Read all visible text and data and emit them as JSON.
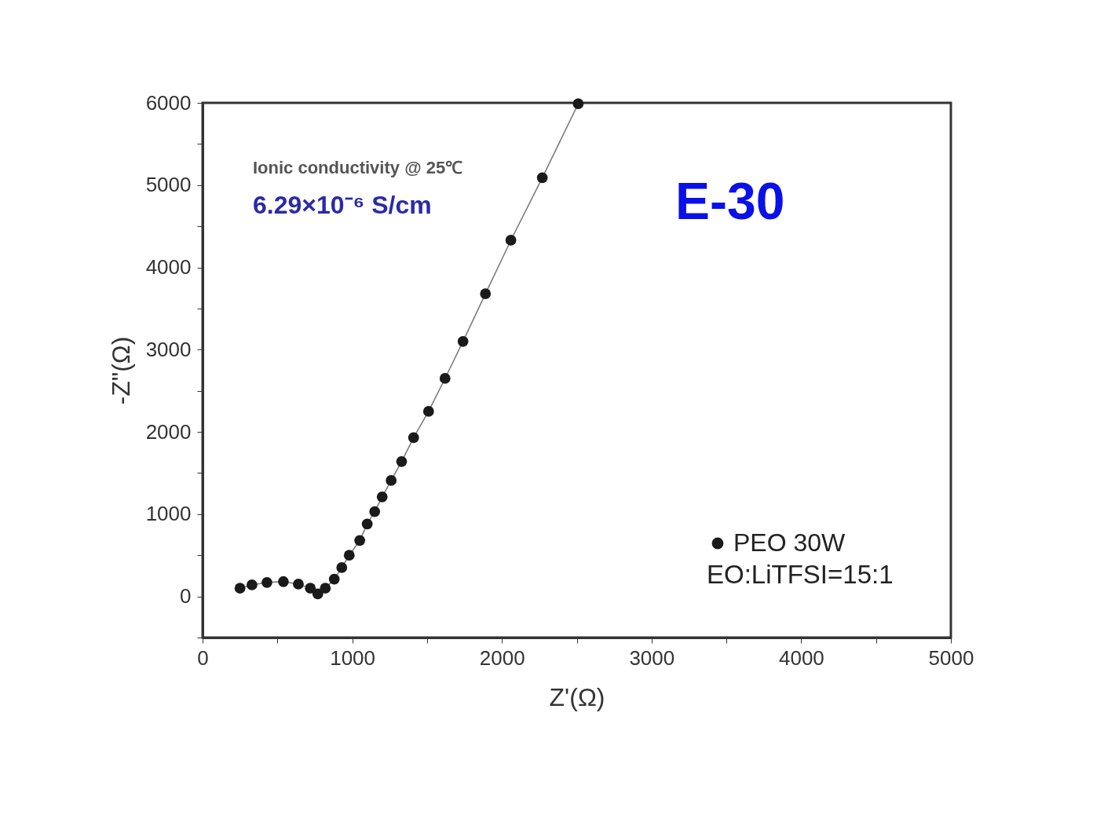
{
  "chart_data": {
    "type": "line",
    "xlabel": "Z'(Ω)",
    "ylabel": "-Z\"(Ω)",
    "annotations": [
      "Ionic conductivity @ 25℃",
      "6.29×10⁻⁶ S/cm",
      "E-30",
      "EO:LiTFSI=15:1"
    ],
    "x": [
      250,
      330,
      430,
      540,
      640,
      720,
      770,
      820,
      880,
      930,
      980,
      1050,
      1100,
      1150,
      1200,
      1260,
      1330,
      1410,
      1510,
      1620,
      1740,
      1890,
      2060,
      2270,
      2510
    ],
    "series": [
      {
        "name": "PEO 30W",
        "color": "#1a1a1a",
        "values": [
          100,
          140,
          170,
          180,
          150,
          100,
          30,
          100,
          210,
          350,
          500,
          680,
          880,
          1030,
          1210,
          1410,
          1640,
          1930,
          2250,
          2650,
          3100,
          3680,
          4330,
          5090,
          5990
        ]
      }
    ],
    "xlim": [
      0,
      5000
    ],
    "ylim": [
      -500,
      6000
    ],
    "xticks": [
      0,
      {
        "value": 500,
        "label": null
      },
      1000,
      {
        "value": 1500,
        "label": null
      },
      2000,
      {
        "value": 2500,
        "label": null
      },
      3000,
      {
        "value": 3500,
        "label": null
      },
      4000,
      {
        "value": 4500,
        "label": null
      },
      5000
    ],
    "yticks": [
      {
        "value": -500,
        "label": null
      },
      0,
      {
        "value": 500,
        "label": null
      },
      1000,
      {
        "value": 1500,
        "label": null
      },
      2000,
      {
        "value": 2500,
        "label": null
      },
      3000,
      {
        "value": 3500,
        "label": null
      },
      4000,
      {
        "value": 4500,
        "label": null
      },
      5000,
      {
        "value": 5500,
        "label": null
      },
      6000
    ],
    "marker": "circle",
    "line_style": "solid",
    "legend": "bottom right",
    "grid": false
  }
}
